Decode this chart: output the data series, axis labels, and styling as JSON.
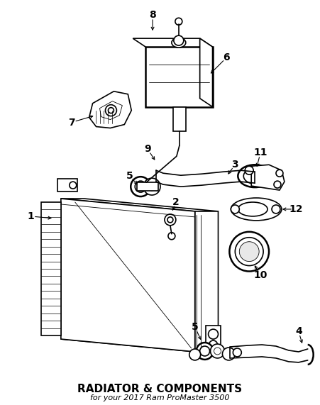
{
  "title": "RADIATOR & COMPONENTS",
  "subtitle": "for your 2017 Ram ProMaster 3500",
  "bg_color": "#ffffff",
  "line_color": "#000000",
  "lw_main": 1.2,
  "lw_thin": 0.6,
  "lw_thick": 1.8,
  "label_fontsize": 10,
  "title_fontsize": 9,
  "fig_w": 4.51,
  "fig_h": 5.71,
  "dpi": 100
}
